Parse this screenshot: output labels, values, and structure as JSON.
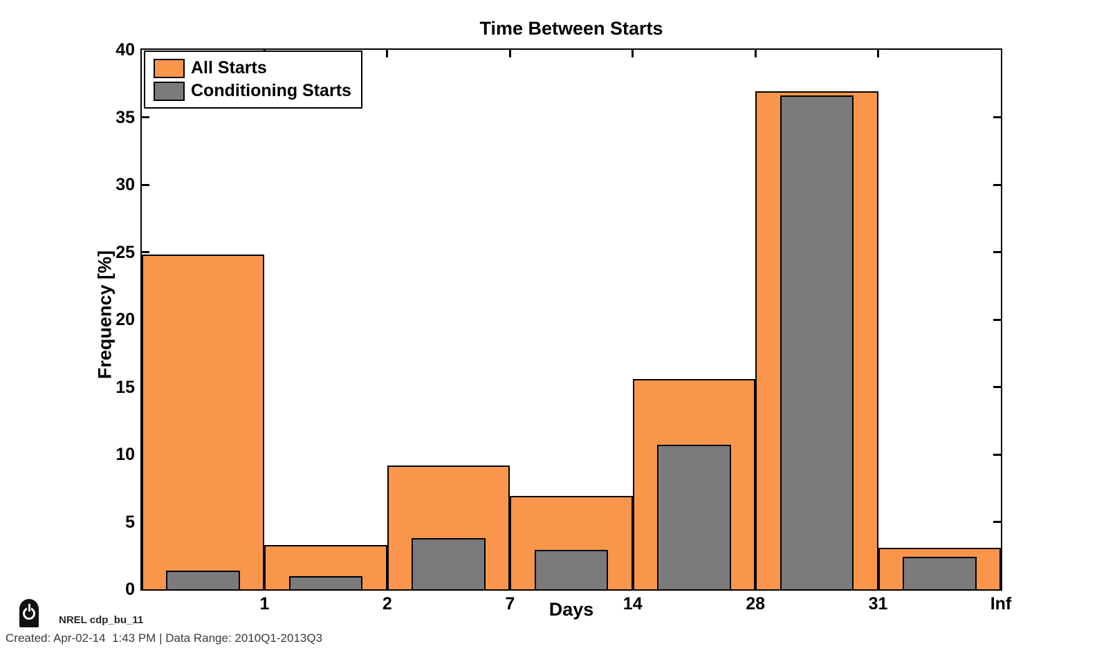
{
  "title": "Time Between Starts",
  "footer": {
    "product_label": "NREL cdp_bu_11",
    "created_line": "Created: Apr-02-14  1:43 PM | Data Range: 2010Q1-2013Q3",
    "icon": "power-icon"
  },
  "colors": {
    "all_starts": "#F9964B",
    "conditioning_starts": "#7B7B7B",
    "bar_border": "#000000",
    "axis": "#000000",
    "background": "#FFFFFF"
  },
  "chart_data": {
    "type": "bar",
    "title": "Time Between Starts",
    "xlabel": "Days",
    "ylabel": "Frequency [%]",
    "ylim": [
      0,
      40
    ],
    "yticks": [
      0,
      5,
      10,
      15,
      20,
      25,
      30,
      35,
      40
    ],
    "x_tick_labels": [
      "1",
      "2",
      "7",
      "14",
      "28",
      "31",
      "Inf"
    ],
    "categories": [
      "0-1",
      "1-2",
      "2-7",
      "7-14",
      "14-28",
      "28-31",
      "31-Inf"
    ],
    "grid": false,
    "legend_position": "top-left",
    "series": [
      {
        "name": "All Starts",
        "color": "#F9964B",
        "bar_width": 1.0,
        "values": [
          24.8,
          3.3,
          9.2,
          6.9,
          15.6,
          36.9,
          3.1
        ]
      },
      {
        "name": "Conditioning Starts",
        "color": "#7B7B7B",
        "bar_width": 0.6,
        "values": [
          1.4,
          1.0,
          3.8,
          2.9,
          10.7,
          36.6,
          2.4
        ]
      }
    ]
  }
}
